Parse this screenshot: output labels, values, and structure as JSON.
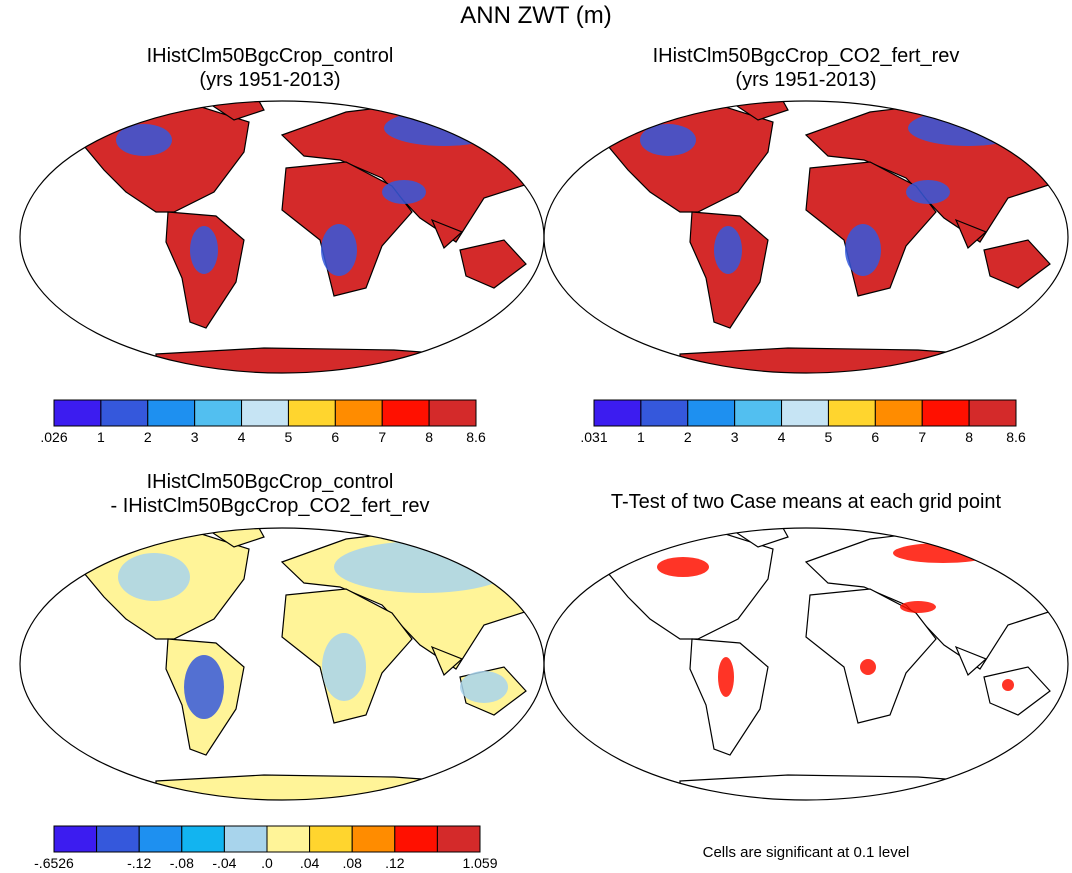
{
  "figure": {
    "title": "ANN ZWT (m)"
  },
  "panels": [
    {
      "id": "control",
      "title_line1": "IHistClm50BgcCrop_control",
      "title_line2": "(yrs 1951-2013)"
    },
    {
      "id": "co2",
      "title_line1": "IHistClm50BgcCrop_CO2_fert_rev",
      "title_line2": "(yrs 1951-2013)"
    },
    {
      "id": "diff",
      "title_line1": "IHistClm50BgcCrop_control",
      "title_line2": "- IHistClm50BgcCrop_CO2_fert_rev"
    },
    {
      "id": "ttest",
      "title_line1": "T-Test of two Case means at each grid point",
      "title_line2": ""
    }
  ],
  "colorbars": {
    "control": {
      "colors": [
        "#3c1cf0",
        "#3558dc",
        "#1e90f0",
        "#52bff0",
        "#c6e4f4",
        "#ffd52e",
        "#ff8c00",
        "#ff1000",
        "#d42a2a"
      ],
      "labels": [
        ".026",
        "1",
        "2",
        "3",
        "4",
        "5",
        "6",
        "7",
        "8",
        "8.6"
      ]
    },
    "co2": {
      "colors": [
        "#3c1cf0",
        "#3558dc",
        "#1e90f0",
        "#52bff0",
        "#c6e4f4",
        "#ffd52e",
        "#ff8c00",
        "#ff1000",
        "#d42a2a"
      ],
      "labels": [
        ".031",
        "1",
        "2",
        "3",
        "4",
        "5",
        "6",
        "7",
        "8",
        "8.6"
      ]
    },
    "diff": {
      "colors": [
        "#3c1cf0",
        "#3558dc",
        "#1e90f0",
        "#12b4f0",
        "#a8d4ec",
        "#fff498",
        "#ffd52e",
        "#ff8c00",
        "#ff1000",
        "#d42a2a"
      ],
      "labels": [
        "-.6526",
        "",
        "-.12",
        "-.08",
        "-.04",
        ".0",
        ".04",
        ".08",
        ".12",
        "",
        "1.059"
      ]
    }
  },
  "ttest_note": "Cells are significant at 0.1 level",
  "colors": {
    "land_red": "#d42a2a",
    "land_blue": "#3558dc",
    "diff_yellow": "#fff498",
    "diff_lightblue": "#a8d4ec",
    "signif_red": "#ff1000",
    "coast": "#000000"
  }
}
